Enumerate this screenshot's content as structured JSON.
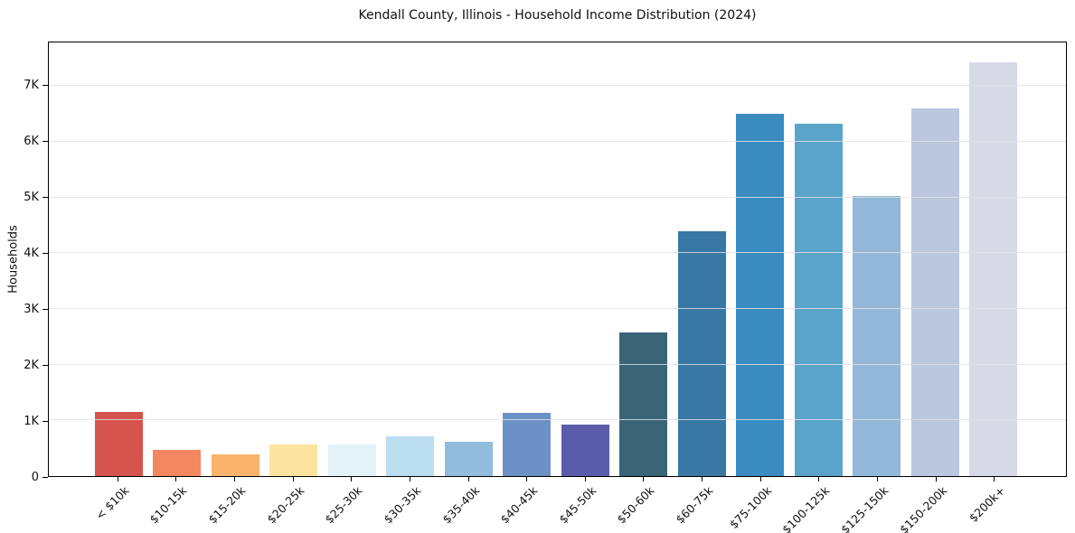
{
  "chart_data": {
    "type": "bar",
    "title": "Kendall County, Illinois - Household Income Distribution (2024)",
    "xlabel": "",
    "ylabel": "Households",
    "categories": [
      "< $10k",
      "$10-15k",
      "$15-20k",
      "$20-25k",
      "$25-30k",
      "$30-35k",
      "$35-40k",
      "$40-45k",
      "$45-50k",
      "$50-60k",
      "$60-75k",
      "$75-100k",
      "$100-125k",
      "$125-150k",
      "$150-200k",
      "$200k+"
    ],
    "values": [
      1150,
      470,
      390,
      570,
      575,
      710,
      615,
      1140,
      920,
      2580,
      4390,
      6500,
      6320,
      5020,
      6590,
      7420
    ],
    "bar_colors": [
      "#d6544e",
      "#f4875f",
      "#f9b36c",
      "#fce3a0",
      "#e4f1f7",
      "#badeef",
      "#92bcdc",
      "#6b91c6",
      "#5a5caa",
      "#3a6577",
      "#3878a3",
      "#3a8cc0",
      "#5ba4c9",
      "#93b8d7",
      "#bac7de",
      "#d7d9e6"
    ],
    "ylim": [
      0,
      7780
    ],
    "yticks": {
      "values": [
        0,
        1000,
        2000,
        3000,
        4000,
        5000,
        6000,
        7000
      ],
      "labels": [
        "0",
        "1K",
        "2K",
        "3K",
        "4K",
        "5K",
        "6K",
        "7K"
      ]
    },
    "grid": "horizontal",
    "legend": "none",
    "background_color": "#ffffff",
    "spine_color": "#000000",
    "gridline_color": "#e6e6ea",
    "x_tick_rotation_deg": 45
  }
}
